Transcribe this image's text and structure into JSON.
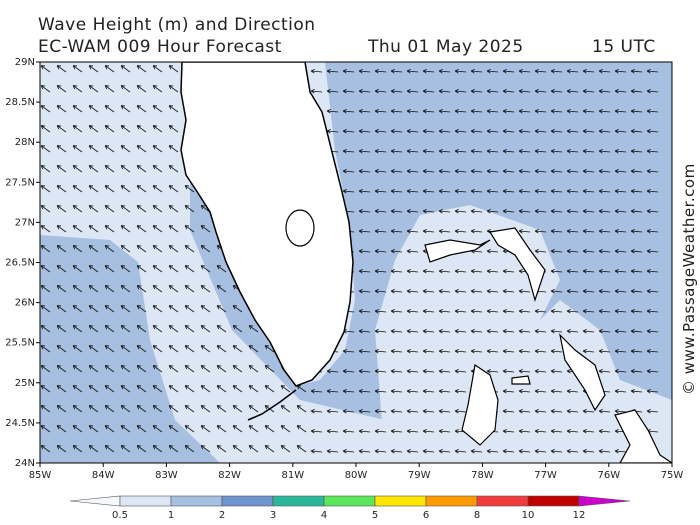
{
  "header": {
    "title": "Wave Height (m) and Direction",
    "subtitle": "EC-WAM 009 Hour Forecast",
    "date": "Thu 01 May 2025",
    "time": "15 UTC"
  },
  "map": {
    "lat_labels": [
      "29N",
      "28.5N",
      "28N",
      "27.5N",
      "27N",
      "26.5N",
      "26N",
      "25.5N",
      "25N",
      "24.5N",
      "24N"
    ],
    "lon_labels": [
      "85W",
      "84W",
      "83W",
      "82W",
      "81W",
      "80W",
      "79W",
      "78W",
      "77W",
      "76W",
      "75W"
    ]
  },
  "legend": {
    "labels": [
      "0.5",
      "1",
      "2",
      "3",
      "4",
      "5",
      "6",
      "8",
      "10",
      "12"
    ],
    "colors": [
      "#f4f7fc",
      "#dce6f4",
      "#a7bfe0",
      "#6f93cc",
      "#2bb89a",
      "#5ce65c",
      "#ffe600",
      "#ff9a00",
      "#f03c3c",
      "#c00000",
      "#cc00cc"
    ]
  },
  "credit": "© www.PassageWeather.com"
}
